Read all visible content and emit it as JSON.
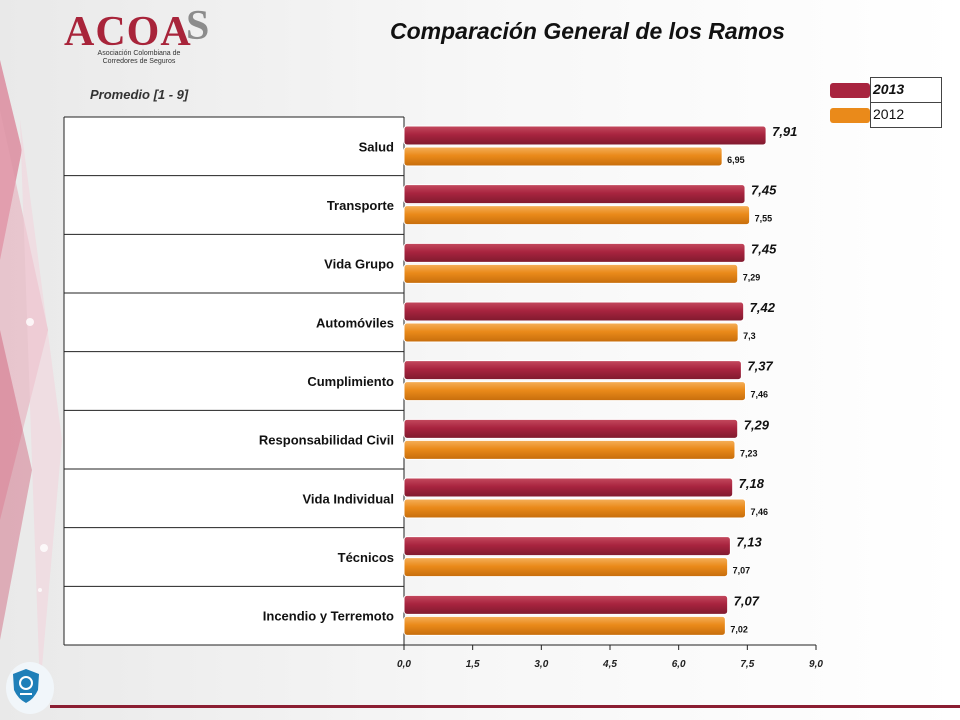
{
  "logo": {
    "text": "ACOA",
    "s": "S",
    "subtitle": "Asociación Colombiana de Corredores de Seguros"
  },
  "chart_data": {
    "type": "bar",
    "orientation": "horizontal",
    "title": "Comparación General de los Ramos",
    "subtitle": "Promedio [1 - 9]",
    "categories": [
      "Salud",
      "Transporte",
      "Vida Grupo",
      "Automóviles",
      "Cumplimiento",
      "Responsabilidad Civil",
      "Vida Individual",
      "Técnicos",
      "Incendio y Terremoto"
    ],
    "series": [
      {
        "name": "2013",
        "values": [
          7.91,
          7.45,
          7.45,
          7.42,
          7.37,
          7.29,
          7.18,
          7.13,
          7.07
        ],
        "labels": [
          "7,91",
          "7,45",
          "7,45",
          "7,42",
          "7,37",
          "7,29",
          "7,18",
          "7,13",
          "7,07"
        ],
        "color": "#a8243f"
      },
      {
        "name": "2012",
        "values": [
          6.95,
          7.55,
          7.29,
          7.3,
          7.46,
          7.23,
          7.46,
          7.07,
          7.02
        ],
        "labels": [
          "6,95",
          "7,55",
          "7,29",
          "7,3",
          "7,46",
          "7,23",
          "7,46",
          "7,07",
          "7,02"
        ],
        "color": "#ea8a1a"
      }
    ],
    "xlim": [
      0,
      9
    ],
    "xticks": [
      0,
      1.5,
      3,
      4.5,
      6,
      7.5,
      9
    ],
    "xtick_labels": [
      "0,0",
      "1,5",
      "3,0",
      "4,5",
      "6,0",
      "7,5",
      "9,0"
    ],
    "legend_position": "top-right",
    "grid": false
  }
}
